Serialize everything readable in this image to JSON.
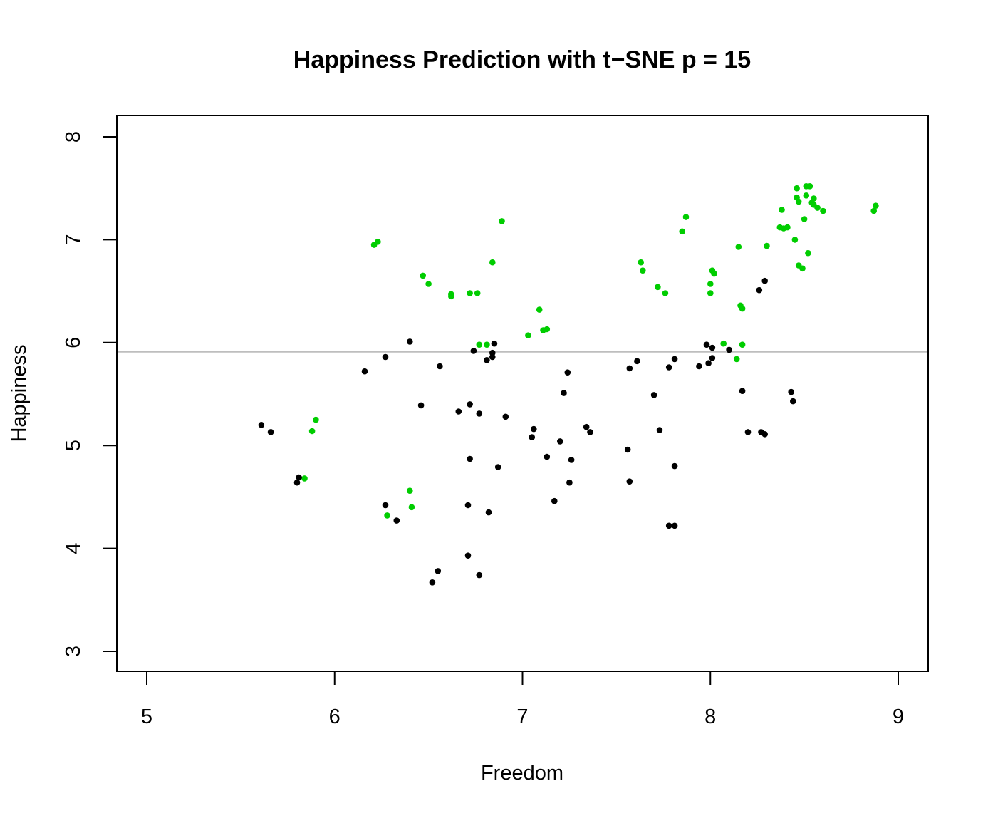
{
  "chart_data": {
    "type": "scatter",
    "title": "Happiness Prediction with t−SNE p = 15",
    "xlabel": "Freedom",
    "ylabel": "Happiness",
    "xlim": [
      5,
      9
    ],
    "ylim": [
      3,
      8
    ],
    "x_ticks": [
      "5",
      "6",
      "7",
      "8",
      "9"
    ],
    "y_ticks": [
      "3",
      "4",
      "5",
      "6",
      "7",
      "8"
    ],
    "grid": false,
    "reference_line": {
      "y": 5.91,
      "color": "#bebebe"
    },
    "colors": {
      "above": "#00cd00",
      "below": "#000000",
      "axes": "#000000"
    },
    "series": [
      {
        "color": "#00cd00",
        "points": [
          [
            6.21,
            6.95
          ],
          [
            6.23,
            6.98
          ],
          [
            6.47,
            6.65
          ],
          [
            6.5,
            6.57
          ],
          [
            6.62,
            6.47
          ],
          [
            6.62,
            6.45
          ],
          [
            6.72,
            6.48
          ],
          [
            6.76,
            6.48
          ],
          [
            6.84,
            6.78
          ],
          [
            6.89,
            7.18
          ],
          [
            6.77,
            5.98
          ],
          [
            6.81,
            5.98
          ],
          [
            7.03,
            6.07
          ],
          [
            7.09,
            6.32
          ],
          [
            7.11,
            6.12
          ],
          [
            7.13,
            6.13
          ],
          [
            7.63,
            6.78
          ],
          [
            7.64,
            6.7
          ],
          [
            7.72,
            6.54
          ],
          [
            7.76,
            6.48
          ],
          [
            7.85,
            7.08
          ],
          [
            7.87,
            7.22
          ],
          [
            8.0,
            6.57
          ],
          [
            8.0,
            6.48
          ],
          [
            8.01,
            6.7
          ],
          [
            8.02,
            6.67
          ],
          [
            8.07,
            5.99
          ],
          [
            8.14,
            5.84
          ],
          [
            8.15,
            6.93
          ],
          [
            8.16,
            6.36
          ],
          [
            8.17,
            6.33
          ],
          [
            8.17,
            5.98
          ],
          [
            8.3,
            6.94
          ],
          [
            8.37,
            7.12
          ],
          [
            8.38,
            7.29
          ],
          [
            8.39,
            7.11
          ],
          [
            8.41,
            7.12
          ],
          [
            8.45,
            7.0
          ],
          [
            8.46,
            7.5
          ],
          [
            8.46,
            7.41
          ],
          [
            8.47,
            6.75
          ],
          [
            8.47,
            7.37
          ],
          [
            8.49,
            6.72
          ],
          [
            8.5,
            7.2
          ],
          [
            8.51,
            7.52
          ],
          [
            8.51,
            7.43
          ],
          [
            8.52,
            6.87
          ],
          [
            8.53,
            7.52
          ],
          [
            8.54,
            7.36
          ],
          [
            8.55,
            7.34
          ],
          [
            8.55,
            7.4
          ],
          [
            8.57,
            7.31
          ],
          [
            8.6,
            7.28
          ],
          [
            8.87,
            7.28
          ],
          [
            8.88,
            7.33
          ],
          [
            5.84,
            4.68
          ],
          [
            5.88,
            5.14
          ],
          [
            5.9,
            5.25
          ],
          [
            6.28,
            4.32
          ],
          [
            6.4,
            4.56
          ],
          [
            6.41,
            4.4
          ]
        ]
      },
      {
        "color": "#000000",
        "points": [
          [
            5.61,
            5.2
          ],
          [
            5.66,
            5.13
          ],
          [
            5.8,
            4.64
          ],
          [
            5.81,
            4.69
          ],
          [
            6.16,
            5.72
          ],
          [
            6.27,
            4.42
          ],
          [
            6.27,
            5.86
          ],
          [
            6.33,
            4.27
          ],
          [
            6.4,
            6.01
          ],
          [
            6.46,
            5.39
          ],
          [
            6.52,
            3.67
          ],
          [
            6.55,
            3.78
          ],
          [
            6.56,
            5.77
          ],
          [
            6.66,
            5.33
          ],
          [
            6.71,
            3.93
          ],
          [
            6.71,
            4.42
          ],
          [
            6.72,
            5.4
          ],
          [
            6.72,
            4.87
          ],
          [
            6.74,
            5.92
          ],
          [
            6.77,
            3.74
          ],
          [
            6.77,
            5.31
          ],
          [
            6.81,
            5.83
          ],
          [
            6.82,
            4.35
          ],
          [
            6.84,
            5.86
          ],
          [
            6.84,
            5.9
          ],
          [
            6.85,
            5.99
          ],
          [
            6.87,
            4.79
          ],
          [
            6.91,
            5.28
          ],
          [
            7.05,
            5.08
          ],
          [
            7.06,
            5.16
          ],
          [
            7.13,
            4.89
          ],
          [
            7.17,
            4.46
          ],
          [
            7.2,
            5.04
          ],
          [
            7.22,
            5.51
          ],
          [
            7.24,
            5.71
          ],
          [
            7.25,
            4.64
          ],
          [
            7.26,
            4.86
          ],
          [
            7.34,
            5.18
          ],
          [
            7.36,
            5.13
          ],
          [
            7.56,
            4.96
          ],
          [
            7.57,
            4.65
          ],
          [
            7.57,
            5.75
          ],
          [
            7.61,
            5.82
          ],
          [
            7.7,
            5.49
          ],
          [
            7.73,
            5.15
          ],
          [
            7.78,
            4.22
          ],
          [
            7.78,
            5.76
          ],
          [
            7.81,
            5.84
          ],
          [
            7.81,
            4.8
          ],
          [
            7.81,
            4.22
          ],
          [
            7.94,
            5.77
          ],
          [
            7.98,
            5.98
          ],
          [
            7.99,
            5.8
          ],
          [
            8.01,
            5.95
          ],
          [
            8.01,
            5.85
          ],
          [
            8.1,
            5.93
          ],
          [
            8.17,
            5.53
          ],
          [
            8.2,
            5.13
          ],
          [
            8.26,
            6.51
          ],
          [
            8.27,
            5.13
          ],
          [
            8.29,
            6.6
          ],
          [
            8.29,
            5.11
          ],
          [
            8.43,
            5.52
          ],
          [
            8.44,
            5.43
          ]
        ]
      }
    ]
  }
}
